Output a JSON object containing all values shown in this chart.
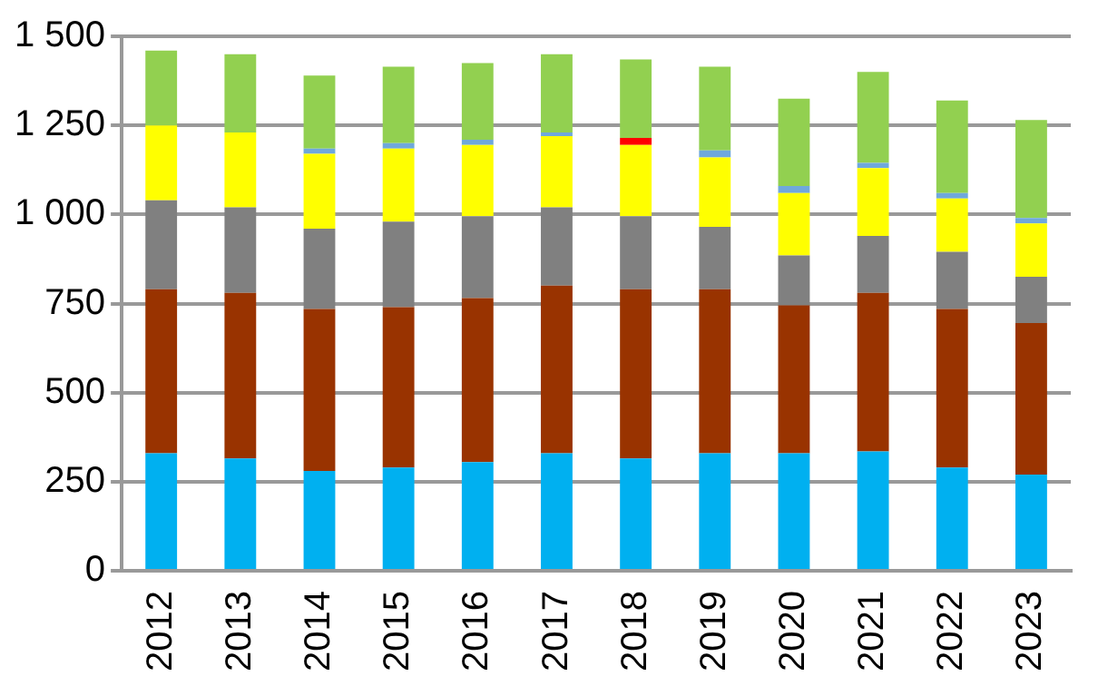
{
  "chart_data": {
    "type": "bar",
    "stacked": true,
    "grid": "y",
    "legend": false,
    "categories": [
      "2012",
      "2013",
      "2014",
      "2015",
      "2016",
      "2017",
      "2018",
      "2019",
      "2020",
      "2021",
      "2022",
      "2023"
    ],
    "series": [
      {
        "color": "#00b0f0",
        "values": [
          330,
          315,
          280,
          290,
          305,
          330,
          315,
          330,
          330,
          335,
          290,
          270
        ]
      },
      {
        "color": "#993300",
        "values": [
          460,
          465,
          455,
          450,
          460,
          470,
          475,
          460,
          415,
          445,
          445,
          425
        ]
      },
      {
        "color": "#808080",
        "values": [
          250,
          240,
          225,
          240,
          230,
          220,
          205,
          175,
          140,
          160,
          160,
          130
        ]
      },
      {
        "color": "#ffff00",
        "values": [
          210,
          210,
          210,
          205,
          200,
          200,
          200,
          195,
          175,
          190,
          150,
          150
        ]
      },
      {
        "color": "#6fa8dc",
        "values": [
          0,
          0,
          15,
          15,
          15,
          10,
          0,
          20,
          20,
          15,
          15,
          15
        ]
      },
      {
        "color": "#ff0000",
        "values": [
          0,
          0,
          0,
          0,
          0,
          0,
          20,
          0,
          0,
          0,
          0,
          0
        ]
      },
      {
        "color": "#92d050",
        "values": [
          210,
          220,
          205,
          215,
          215,
          220,
          220,
          235,
          245,
          255,
          260,
          275
        ]
      }
    ],
    "ylim": [
      0,
      1500
    ],
    "yticks": [
      0,
      250,
      500,
      750,
      {
        "value": 1000,
        "label": "1 000"
      },
      {
        "value": 1250,
        "label": "1 250"
      },
      {
        "value": 1500,
        "label": "1 500"
      }
    ]
  }
}
